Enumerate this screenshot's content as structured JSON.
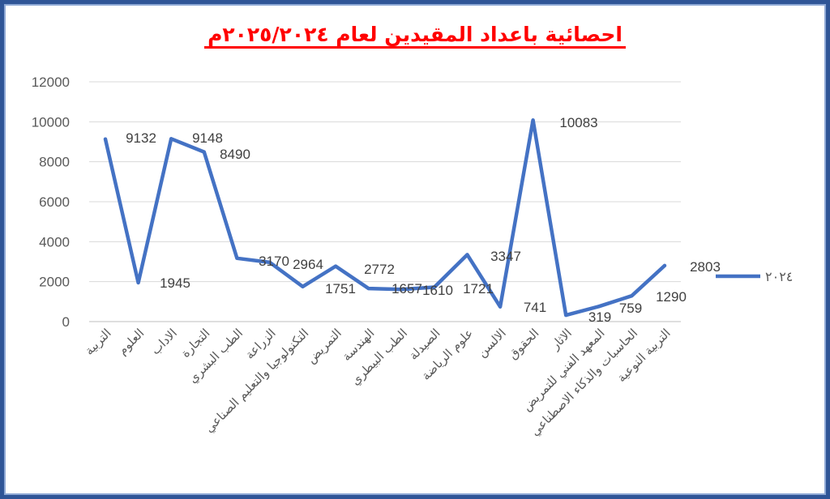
{
  "chart_data": {
    "type": "line",
    "title": "احصائية باعداد المقيدين لعام ٢٠٢٥/٢٠٢٤م",
    "xlabel": "",
    "ylabel": "",
    "ylim": [
      0,
      12000
    ],
    "yticks": [
      "0",
      "2000",
      "4000",
      "6000",
      "8000",
      "10000",
      "12000"
    ],
    "grid": true,
    "legend_position": "right",
    "categories": [
      "التربية",
      "العلوم",
      "الاداب",
      "التجارة",
      "الطب البشري",
      "الزراعة",
      "التكنولوجيا والتعليم الصناعي",
      "التمريض",
      "الهندسة",
      "الطب البيطري",
      "الصيدلة",
      "علوم الرياضة",
      "الالسن",
      "الحقوق",
      "الاثار",
      "المعهد الفني للتمريض",
      "الحاسبات والذكاء الاصطناعي",
      "التربية النوعية"
    ],
    "series": [
      {
        "name": "٢٠٢٤",
        "color": "#4472c4",
        "values": [
          9132,
          1945,
          9148,
          8490,
          3170,
          2964,
          1751,
          2772,
          1657,
          1610,
          1721,
          3347,
          741,
          10083,
          319,
          759,
          1290,
          2803
        ],
        "labels": [
          "9132",
          "1945",
          "9148",
          "8490",
          "3170",
          "2964",
          "1751",
          "2772",
          "1657",
          "1610",
          "1721",
          "3347",
          "741",
          "10083",
          "319",
          "759",
          "1290",
          "2803"
        ]
      }
    ]
  }
}
